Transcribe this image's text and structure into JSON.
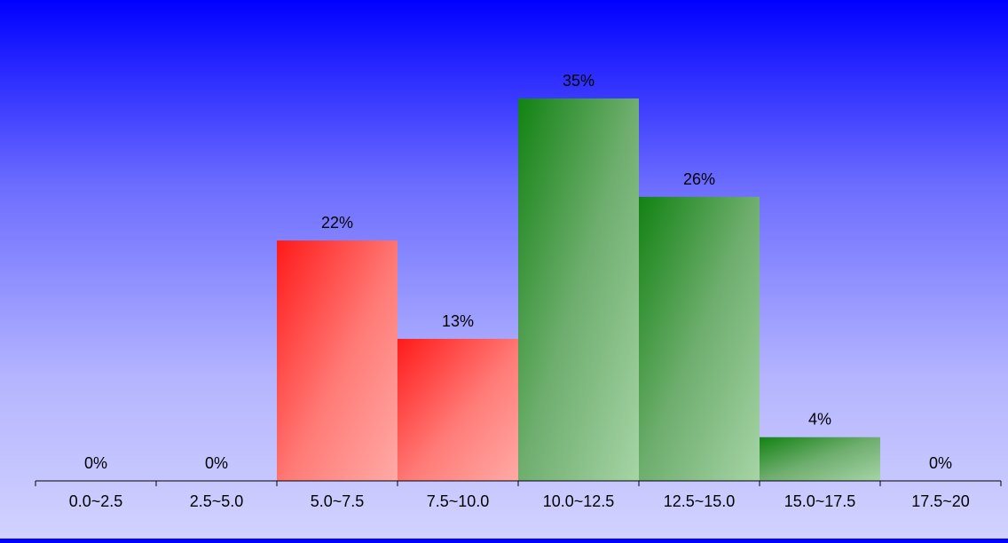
{
  "chart_data": {
    "type": "bar",
    "title": "",
    "xlabel": "",
    "ylabel": "",
    "categories": [
      "0.0~2.5",
      "2.5~5.0",
      "5.0~7.5",
      "7.5~10.0",
      "10.0~12.5",
      "12.5~15.0",
      "15.0~17.5",
      "17.5~20"
    ],
    "values": [
      0,
      0,
      22,
      13,
      35,
      26,
      4,
      0
    ],
    "value_labels": [
      "0%",
      "0%",
      "22%",
      "13%",
      "35%",
      "26%",
      "4%",
      "0%"
    ],
    "value_unit": "%",
    "ylim": [
      0,
      35
    ],
    "grid": false,
    "legend": "none",
    "colors": {
      "red_group": "#ff1a1a",
      "red_group_light": "#ffaaa6",
      "green_group": "#128212",
      "green_group_light": "#a6d4a6",
      "background_top": "#0000ff",
      "background_bottom": "#d2d2ff",
      "axis": "#000000",
      "text": "#000000"
    },
    "bar_color_groups": [
      "red",
      "red",
      "red",
      "red",
      "green",
      "green",
      "green",
      "green"
    ]
  }
}
